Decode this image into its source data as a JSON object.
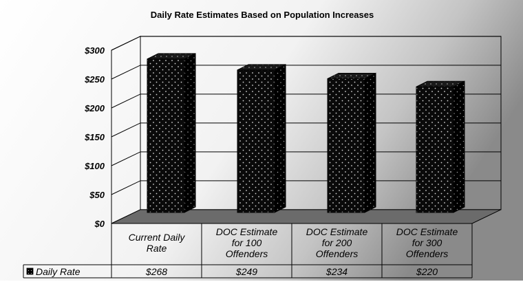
{
  "chart_data": {
    "type": "bar",
    "title": "Daily Rate Estimates Based on Population Increases",
    "xlabel": "",
    "ylabel": "",
    "ylim": [
      0,
      300
    ],
    "y_ticks": [
      "$0",
      "$50",
      "$100",
      "$150",
      "$200",
      "$250",
      "$300"
    ],
    "categories": [
      [
        "Current Daily",
        "Rate"
      ],
      [
        "DOC Estimate",
        "for 100",
        "Offenders"
      ],
      [
        "DOC Estimate",
        "for 200",
        "Offenders"
      ],
      [
        "DOC Estimate",
        "for 300",
        "Offenders"
      ]
    ],
    "series": [
      {
        "name": "Daily Rate",
        "values": [
          268,
          249,
          234,
          220
        ],
        "labels": [
          "$268",
          "$249",
          "$234",
          "$220"
        ]
      }
    ],
    "grid": true,
    "legend": "data-table-left",
    "colors": {
      "bar": "#0a0a0a",
      "bar_dots": "#d8d8d8",
      "background_light": "#ffffff",
      "background_dark": "#8a8a8a"
    }
  }
}
